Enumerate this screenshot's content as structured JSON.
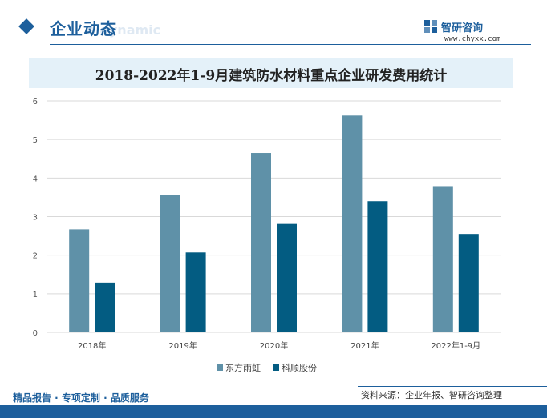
{
  "header": {
    "section_title": "企业动态",
    "section_subtitle": "e dynamic",
    "brand_name": "智研咨询",
    "brand_url": "www.chyxx.com"
  },
  "colors": {
    "brand": "#1d5f9c",
    "series_1": "#5f91a8",
    "series_2": "#035c82",
    "title_band": "#e4f1f9"
  },
  "chart_data": {
    "type": "bar",
    "title": "2018-2022年1-9月建筑防水材料重点企业研发费用统计",
    "categories": [
      "2018年",
      "2019年",
      "2020年",
      "2021年",
      "2022年1-9月"
    ],
    "series": [
      {
        "name": "东方雨虹",
        "values": [
          2.67,
          3.57,
          4.65,
          5.62,
          3.79
        ]
      },
      {
        "name": "科顺股份",
        "values": [
          1.29,
          2.07,
          2.81,
          3.4,
          2.55
        ]
      }
    ],
    "ylim": [
      0,
      6
    ],
    "yticks": [
      0,
      1,
      2,
      3,
      4,
      5,
      6
    ],
    "xlabel": "",
    "ylabel": "",
    "grid": true,
    "legend_position": "bottom"
  },
  "footer": {
    "tagline": "精品报告 · 专项定制 · 品质服务",
    "source": "资料来源：企业年报、智研咨询整理"
  }
}
